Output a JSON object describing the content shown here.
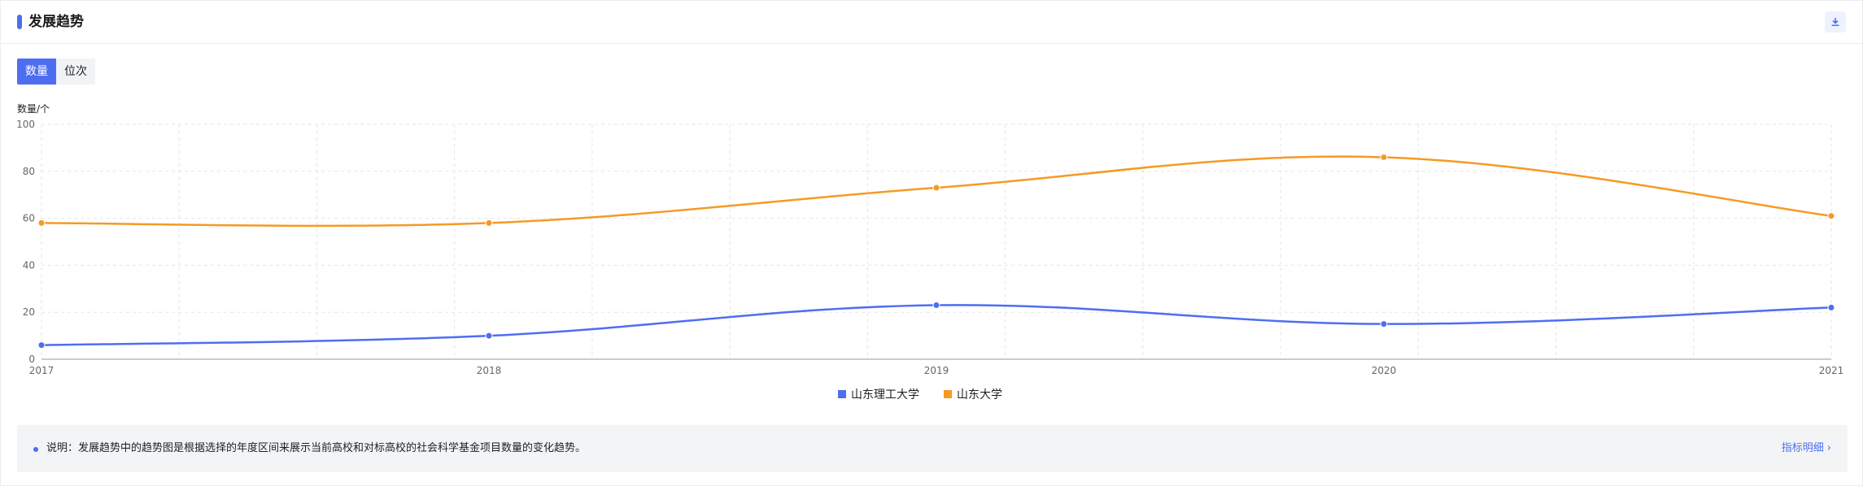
{
  "header": {
    "title": "发展趋势",
    "download_icon": "download-icon"
  },
  "tabs": [
    {
      "label": "数量",
      "active": true
    },
    {
      "label": "位次",
      "active": false
    }
  ],
  "chart_data": {
    "type": "line",
    "ylabel": "数量/个",
    "x": [
      "2017",
      "2018",
      "2019",
      "2020",
      "2021"
    ],
    "ylim": [
      0,
      100
    ],
    "yticks": [
      "0",
      "20",
      "40",
      "60",
      "80",
      "100"
    ],
    "grid": true,
    "smooth": true,
    "legend_position": "bottom-center",
    "series": [
      {
        "name": "山东理工大学",
        "color": "#4e6ef2",
        "values": [
          6,
          10,
          23,
          15,
          22
        ]
      },
      {
        "name": "山东大学",
        "color": "#f59a23",
        "values": [
          58,
          58,
          73,
          86,
          61
        ]
      }
    ]
  },
  "note": {
    "text": "说明：发展趋势中的趋势图是根据选择的年度区间来展示当前高校和对标高校的社会科学基金项目数量的变化趋势。",
    "link": "指标明细",
    "link_chevron": "›"
  }
}
